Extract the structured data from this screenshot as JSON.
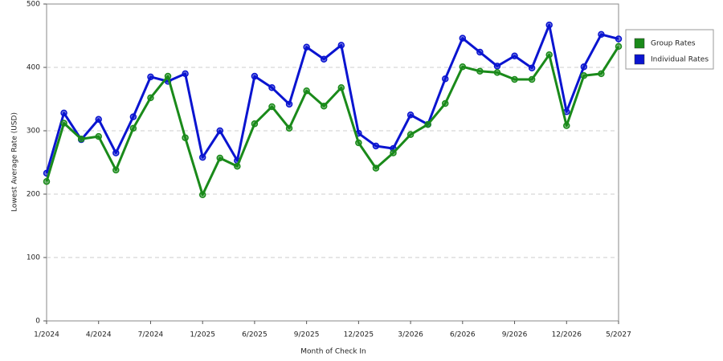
{
  "chart_data": {
    "type": "line",
    "x_label": "Month of Check In",
    "y_label": "Lowest Average Rate (USD)",
    "categories": [
      "1/2024",
      null,
      null,
      "4/2024",
      null,
      null,
      "7/2024",
      null,
      null,
      "1/2025",
      null,
      null,
      "6/2025",
      null,
      null,
      "9/2025",
      null,
      null,
      "12/2025",
      null,
      null,
      "3/2026",
      null,
      null,
      "6/2026",
      null,
      null,
      "9/2026",
      null,
      null,
      "12/2026",
      null,
      null,
      "5/2027"
    ],
    "series": [
      {
        "name": "Group Rates",
        "color": "#1a8a1a",
        "values": [
          220,
          312,
          287,
          291,
          238,
          304,
          352,
          386,
          289,
          199,
          257,
          244,
          311,
          338,
          304,
          363,
          339,
          368,
          281,
          241,
          265,
          294,
          310,
          343,
          401,
          394,
          392,
          381,
          381,
          420,
          308,
          387,
          390,
          433
        ]
      },
      {
        "name": "Individual Rates",
        "color": "#0a14d0",
        "values": [
          233,
          328,
          286,
          318,
          265,
          322,
          385,
          378,
          390,
          258,
          300,
          253,
          386,
          368,
          342,
          432,
          413,
          435,
          296,
          276,
          272,
          325,
          310,
          382,
          446,
          424,
          402,
          418,
          399,
          467,
          330,
          401,
          452,
          445
        ]
      }
    ],
    "ylim": [
      0,
      500
    ],
    "yticks": [
      0,
      100,
      200,
      300,
      400,
      500
    ],
    "grid": true,
    "legend": "right"
  }
}
